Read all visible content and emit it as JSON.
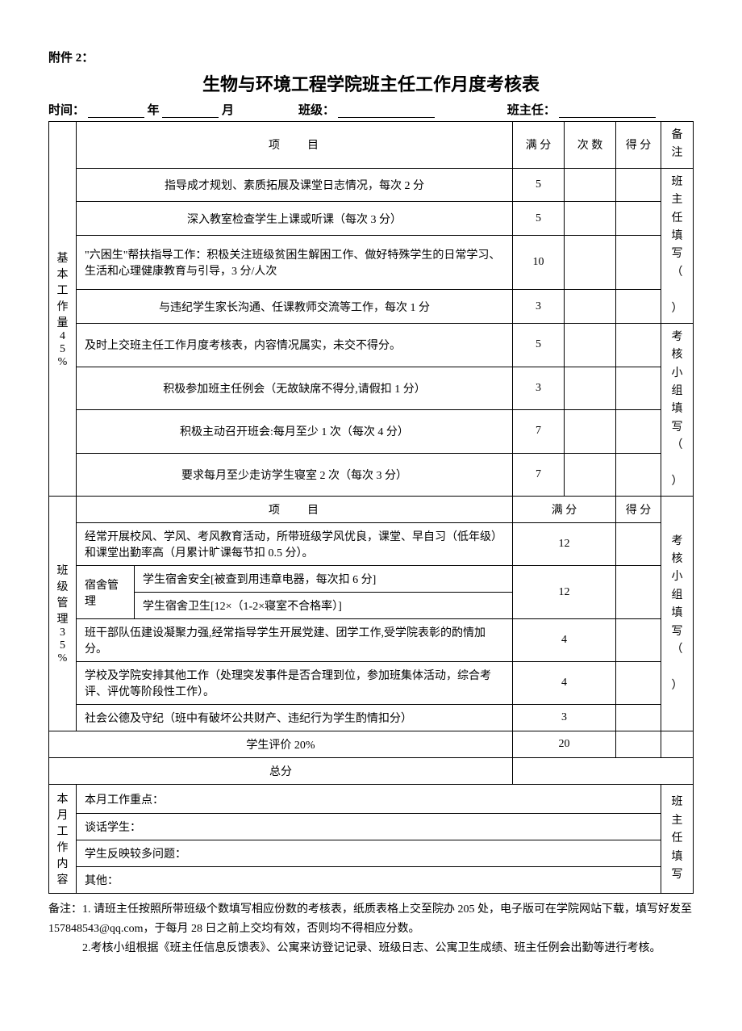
{
  "attachment": "附件 2：",
  "title": "生物与环境工程学院班主任工作月度考核表",
  "meta": {
    "time_label": "时间：",
    "year_suffix": "年",
    "month_suffix": "月",
    "class_label": "班级：",
    "teacher_label": "班主任："
  },
  "section1": {
    "label": "基本工作量45%",
    "headers": {
      "item": "项　　目",
      "full": "满 分",
      "count": "次 数",
      "score": "得 分",
      "remark": "备注"
    },
    "rows": [
      {
        "item": "指导成才规划、素质拓展及课堂日志情况，每次 2 分",
        "full": "5",
        "align": "center"
      },
      {
        "item": "深入教室检查学生上课或听课（每次 3 分）",
        "full": "5",
        "align": "center"
      },
      {
        "item": "\"六困生\"帮扶指导工作：积极关注班级贫困生解困工作、做好特殊学生的日常学习、生活和心理健康教育与引导，3 分/人次",
        "full": "10",
        "align": "left"
      },
      {
        "item": "与违纪学生家长沟通、任课教师交流等工作，每次 1 分",
        "full": "3",
        "align": "center"
      },
      {
        "item": "及时上交班主任工作月度考核表，内容情况属实，未交不得分。",
        "full": "5",
        "align": "left"
      },
      {
        "item": "积极参加班主任例会（无故缺席不得分,请假扣 1 分）",
        "full": "3",
        "align": "center"
      },
      {
        "item": "积极主动召开班会:每月至少 1 次（每次 4 分）",
        "full": "7",
        "align": "center"
      },
      {
        "item": "要求每月至少走访学生寝室 2 次（每次 3 分）",
        "full": "7",
        "align": "center"
      }
    ],
    "remark_top": "班主任填写（　）",
    "remark_bottom": "考核小组填写（　）"
  },
  "section2": {
    "label": "班级管理35%",
    "headers": {
      "item": "项　　目",
      "full": "满 分",
      "score": "得 分"
    },
    "rows": [
      {
        "item": "经常开展校风、学风、考风教育活动，所带班级学风优良，课堂、早自习（低年级）和课堂出勤率高（月累计旷课每节扣 0.5 分）。",
        "full": "12"
      },
      {
        "dorm_label": "宿舍管理",
        "dorm1": "学生宿舍安全[被查到用违章电器，每次扣 6 分]",
        "dorm2": "学生宿舍卫生[12×（1-2×寝室不合格率）]",
        "full": "12"
      },
      {
        "item": "班干部队伍建设凝聚力强,经常指导学生开展党建、团学工作,受学院表彰的酌情加分。",
        "full": "4"
      },
      {
        "item": "学校及学院安排其他工作（处理突发事件是否合理到位，参加班集体活动，综合考评、评优等阶段性工作）。",
        "full": "4"
      },
      {
        "item": "社会公德及守纪（班中有破坏公共财产、违纪行为学生酌情扣分）",
        "full": "3"
      }
    ],
    "remark": "考核小组填写（　）"
  },
  "student_eval": {
    "label": "学生评价 20%",
    "full": "20"
  },
  "total": {
    "label": "总分"
  },
  "section3": {
    "label": "本月工作内容",
    "rows": [
      "本月工作重点：",
      "谈话学生：",
      "学生反映较多问题：",
      "其他："
    ],
    "remark": "班主任填写"
  },
  "footnotes": [
    "备注：1. 请班主任按照所带班级个数填写相应份数的考核表，纸质表格上交至院办 205 处，电子版可在学院网站下载，填写好发至 157848543@qq.com，于每月 28 日之前上交均有效，否则均不得相应分数。",
    "　　　2.考核小组根据《班主任信息反馈表》、公寓来访登记记录、班级日志、公寓卫生成绩、班主任例会出勤等进行考核。"
  ]
}
